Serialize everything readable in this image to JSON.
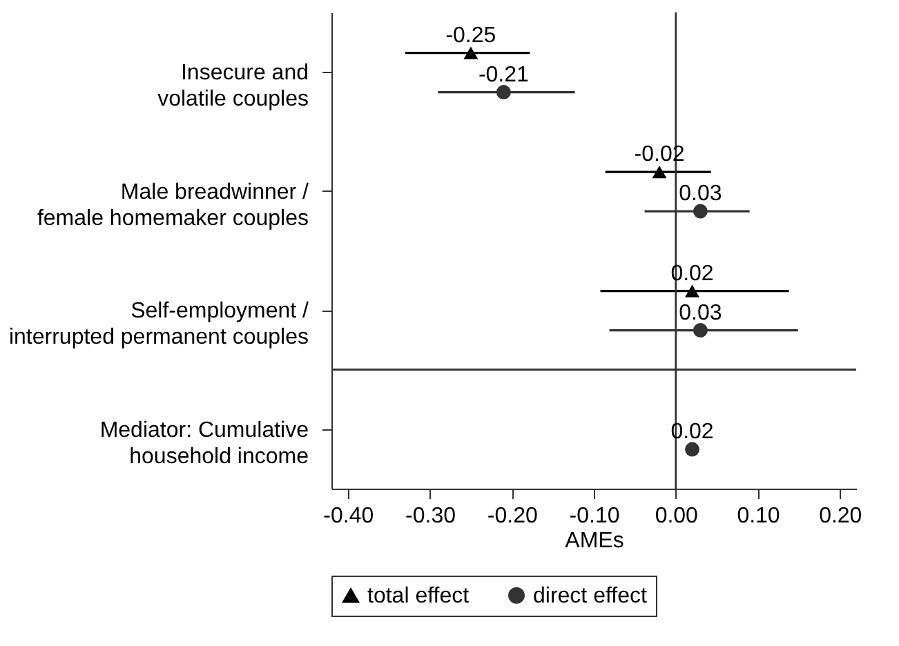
{
  "chart_data": {
    "type": "scatter",
    "orientation": "horizontal",
    "xlabel": "AMEs",
    "categories": [
      "Insecure and\nvolatile couples",
      "Male breadwinner /\nfemale homemaker couples",
      "Self-employment /\ninterrupted permanent couples",
      "Mediator: Cumulative\nhousehold income"
    ],
    "series": [
      {
        "name": "total effect",
        "color": "#000000",
        "marker": "triangle",
        "values": [
          -0.25,
          -0.02,
          0.02,
          null
        ],
        "errors": [
          [
            -0.33,
            -0.178
          ],
          [
            -0.086,
            0.043
          ],
          [
            -0.092,
            0.138
          ],
          null
        ]
      },
      {
        "name": "direct effect",
        "color": "#333333",
        "marker": "circle",
        "values": [
          -0.21,
          0.03,
          0.03,
          0.02
        ],
        "errors": [
          [
            -0.29,
            -0.123
          ],
          [
            -0.038,
            0.09
          ],
          [
            -0.081,
            0.149
          ],
          null
        ]
      }
    ],
    "xlim": [
      -0.42,
      0.22
    ],
    "xticks": [
      {
        "value": -0.4,
        "label": "-0.40"
      },
      {
        "value": -0.3,
        "label": "-0.30"
      },
      {
        "value": -0.2,
        "label": "-0.20"
      },
      {
        "value": -0.1,
        "label": "-0.10"
      },
      {
        "value": 0,
        "label": "0.00"
      },
      {
        "value": 0.1,
        "label": "0.10"
      },
      {
        "value": 0.2,
        "label": "0.20"
      }
    ],
    "ref_lines": [
      {
        "axis": "x",
        "value": 0,
        "color": "#333333"
      }
    ],
    "data_labels": true,
    "grid": false,
    "legend": "bottom"
  }
}
